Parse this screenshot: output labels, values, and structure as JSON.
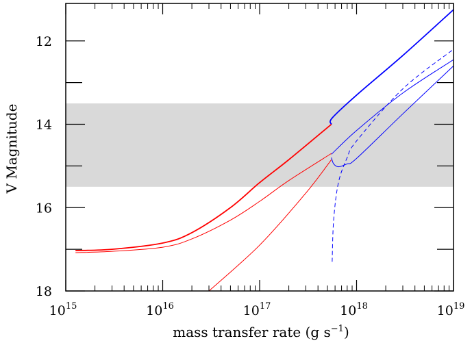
{
  "chart_data": {
    "type": "line",
    "xlabel": "mass transfer rate (g s",
    "xlabel_sup": "−1",
    "xlabel_close": ")",
    "ylabel": "V Magnitude",
    "x_scale": "log",
    "xlim": [
      1000000000000000.0,
      1e+19
    ],
    "ylim": [
      18,
      11.1
    ],
    "y_inverted": true,
    "x_ticks": [
      {
        "base": "10",
        "exp": "15",
        "value": 1000000000000000.0
      },
      {
        "base": "10",
        "exp": "16",
        "value": 1e+16
      },
      {
        "base": "10",
        "exp": "17",
        "value": 1e+17
      },
      {
        "base": "10",
        "exp": "18",
        "value": 1e+18
      },
      {
        "base": "10",
        "exp": "19",
        "value": 1e+19
      }
    ],
    "y_ticks": [
      {
        "label": "12",
        "value": 12
      },
      {
        "label": "14",
        "value": 14
      },
      {
        "label": "16",
        "value": 16
      },
      {
        "label": "18",
        "value": 18
      }
    ],
    "shaded_band": {
      "y_from": 13.5,
      "y_to": 15.5,
      "color": "#d9d9d9"
    },
    "colors": {
      "red": "#ff0000",
      "blue": "#0000ff"
    },
    "series": [
      {
        "color": "#ff0000",
        "width": 1.8,
        "dash": "",
        "points": [
          [
            1260000000000000.0,
            17.03
          ],
          [
            3000000000000000.0,
            17.0
          ],
          [
            1e+16,
            16.85
          ],
          [
            2e+16,
            16.6
          ],
          [
            5e+16,
            16.0
          ],
          [
            1e+17,
            15.4
          ],
          [
            2e+17,
            14.85
          ],
          [
            5.5e+17,
            14.0
          ]
        ]
      },
      {
        "color": "#ff0000",
        "width": 1.0,
        "dash": "",
        "points": [
          [
            1260000000000000.0,
            17.08
          ],
          [
            3000000000000000.0,
            17.05
          ],
          [
            1e+16,
            16.95
          ],
          [
            2e+16,
            16.75
          ],
          [
            5e+16,
            16.3
          ],
          [
            1e+17,
            15.85
          ],
          [
            2e+17,
            15.35
          ],
          [
            5.5e+17,
            14.7
          ]
        ]
      },
      {
        "color": "#ff0000",
        "width": 1.0,
        "dash": "",
        "points": [
          [
            3e+16,
            18.0
          ],
          [
            1e+17,
            16.9
          ],
          [
            3e+17,
            15.65
          ],
          [
            5.5e+17,
            14.85
          ]
        ]
      },
      {
        "color": "#0000ff",
        "width": 1.8,
        "dash": "",
        "points": [
          [
            5.5e+17,
            14.0
          ],
          [
            5.6e+17,
            13.85
          ],
          [
            1e+18,
            13.3
          ],
          [
            3e+18,
            12.35
          ],
          [
            1e+19,
            11.25
          ]
        ]
      },
      {
        "color": "#0000ff",
        "width": 1.0,
        "dash": "",
        "points": [
          [
            5.5e+17,
            14.72
          ],
          [
            1e+18,
            14.15
          ],
          [
            3e+18,
            13.25
          ],
          [
            1e+19,
            12.45
          ]
        ]
      },
      {
        "color": "#0000ff",
        "width": 1.0,
        "dash": "",
        "points": [
          [
            5.5e+17,
            14.8
          ],
          [
            5.8e+17,
            14.95
          ],
          [
            6.5e+17,
            15.02
          ],
          [
            8e+17,
            14.95
          ],
          [
            1e+18,
            14.82
          ],
          [
            3e+18,
            13.75
          ],
          [
            1e+19,
            12.6
          ]
        ]
      },
      {
        "color": "#0000ff",
        "width": 1.0,
        "dash": "6,4",
        "points": [
          [
            5.6e+17,
            17.3
          ],
          [
            5.8e+17,
            16.3
          ],
          [
            6.5e+17,
            15.4
          ],
          [
            8e+17,
            14.8
          ],
          [
            1e+18,
            14.4
          ],
          [
            3e+18,
            13.15
          ],
          [
            1e+19,
            12.2
          ]
        ]
      }
    ]
  }
}
